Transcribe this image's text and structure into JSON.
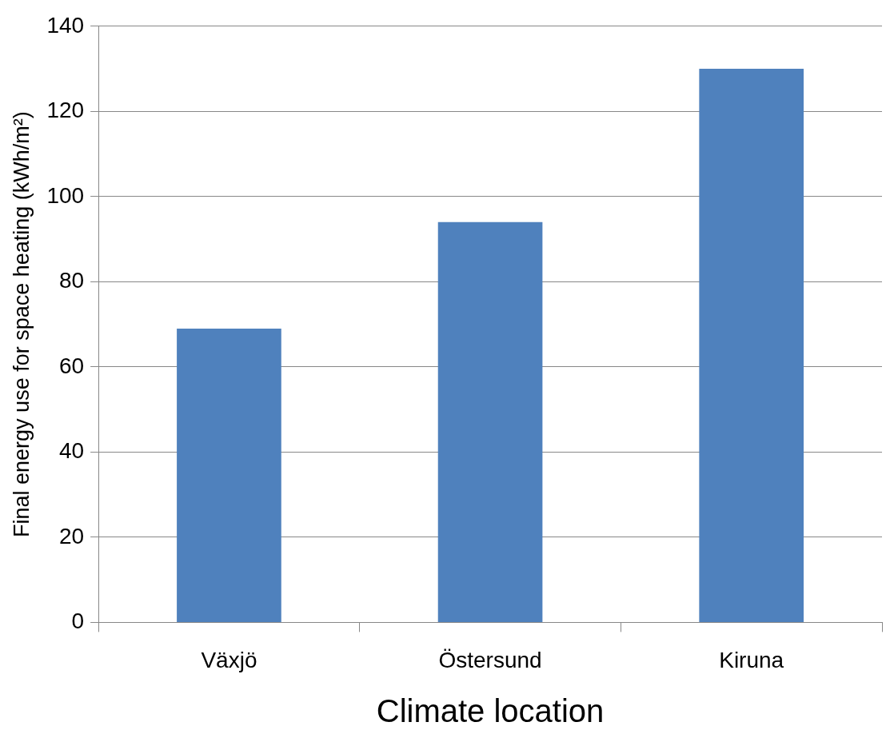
{
  "chart_data": {
    "type": "bar",
    "xlabel": "Climate location",
    "ylabel": "Final energy use for space heating (kWh/m²)",
    "categories": [
      "Växjö",
      "Östersund",
      "Kiruna"
    ],
    "values": [
      69,
      94,
      130
    ],
    "color": "#4f81bd",
    "ylim": [
      0,
      140
    ],
    "yticks": [
      0,
      20,
      40,
      60,
      80,
      100,
      120,
      140
    ],
    "grid": "y",
    "legend": false
  }
}
